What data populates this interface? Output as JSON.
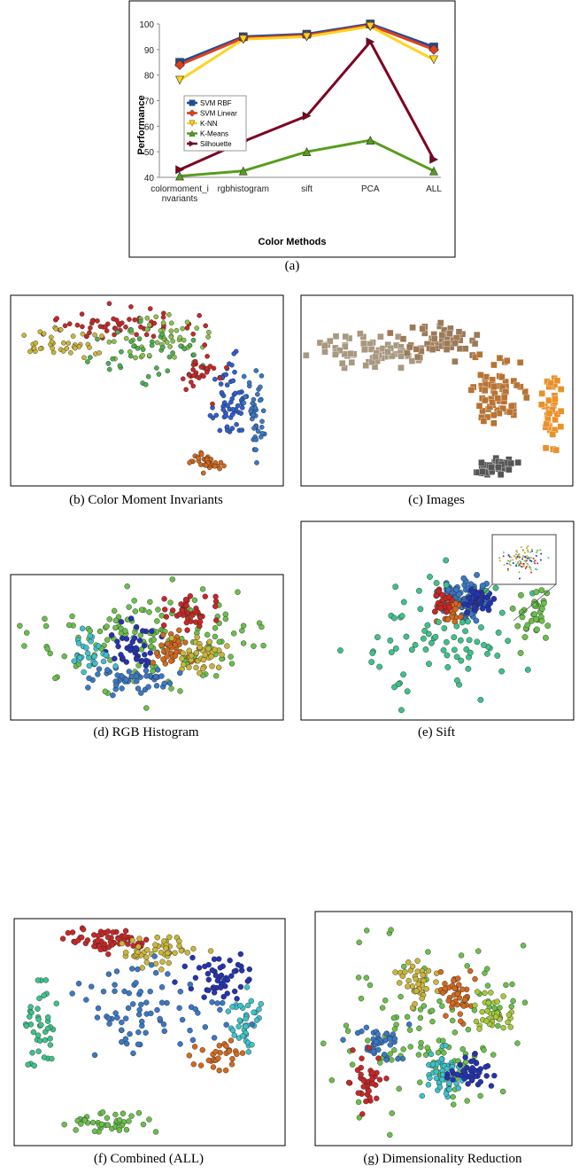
{
  "chart_data": {
    "type": "line",
    "caption": "(a)",
    "xlabel": "Color Methods",
    "ylabel": "Performance",
    "categories": [
      "colormoment_invariants",
      "rgbhistogram",
      "sift",
      "PCA",
      "ALL"
    ],
    "ylim": [
      40,
      100
    ],
    "yticks": [
      40,
      50,
      60,
      70,
      80,
      90,
      100
    ],
    "grid": false,
    "legend": "left",
    "series": [
      {
        "name": "SVM RBF",
        "color": "#1f4e9a",
        "marker": "square",
        "values": [
          85,
          95,
          96,
          100,
          91
        ]
      },
      {
        "name": "SVM Linear",
        "color": "#e0401c",
        "marker": "diamond",
        "values": [
          84,
          94.5,
          95.5,
          99.5,
          90
        ]
      },
      {
        "name": "K-NN",
        "color": "#ffd320",
        "marker": "triangle-down",
        "values": [
          78,
          94,
          95,
          99,
          86
        ]
      },
      {
        "name": "K-Means",
        "color": "#579d1c",
        "marker": "triangle-up",
        "values": [
          40.5,
          42.5,
          50,
          54.5,
          42.5
        ]
      },
      {
        "name": "Silhouette",
        "color": "#7e0021",
        "marker": "triangle-right",
        "values": [
          43,
          54,
          64,
          93,
          47
        ]
      }
    ]
  },
  "panels": [
    {
      "caption": "(b) Color Moment Invariants"
    },
    {
      "caption": "(c) Images"
    },
    {
      "caption": "(d) RGB Histogram"
    },
    {
      "caption": "(e) Sift"
    },
    {
      "caption": "(f) Combined (ALL)"
    },
    {
      "caption": "(g) Dimensionality Reduction"
    }
  ]
}
